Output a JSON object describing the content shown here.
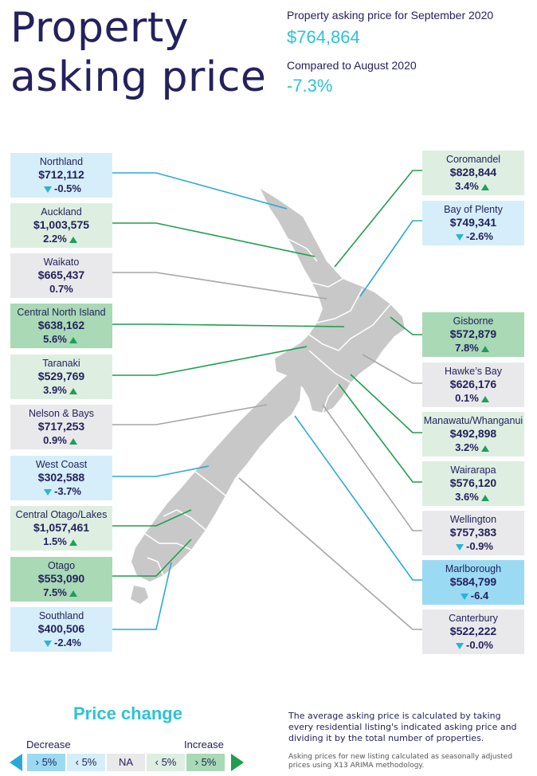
{
  "title_line1": "Property",
  "title_line2": "asking price",
  "header": {
    "current_label": "Property asking price for September 2020",
    "current_value": "$764,864",
    "compare_label": "Compared to August 2020",
    "compare_value": "-7.3%"
  },
  "regions": [
    {
      "name": "Northland",
      "price": "$712,112",
      "change": "-0.5%",
      "direction": "down",
      "category": "decrease-small",
      "side": "left"
    },
    {
      "name": "Auckland",
      "price": "$1,003,575",
      "change": "2.2%",
      "direction": "up",
      "category": "increase-small",
      "side": "left"
    },
    {
      "name": "Waikato",
      "price": "$665,437",
      "change": "0.7%",
      "direction": "none",
      "category": "na",
      "side": "left"
    },
    {
      "name": "Central North Island",
      "price": "$638,162",
      "change": "5.6%",
      "direction": "up",
      "category": "increase-large",
      "side": "left"
    },
    {
      "name": "Taranaki",
      "price": "$529,769",
      "change": "3.9%",
      "direction": "up",
      "category": "increase-small",
      "side": "left"
    },
    {
      "name": "Nelson & Bays",
      "price": "$717,253",
      "change": "0.9%",
      "direction": "up",
      "category": "na",
      "side": "left"
    },
    {
      "name": "West Coast",
      "price": "$302,588",
      "change": "-3.7%",
      "direction": "down",
      "category": "decrease-small",
      "side": "left"
    },
    {
      "name": "Central Otago/Lakes",
      "price": "$1,057,461",
      "change": "1.5%",
      "direction": "up",
      "category": "increase-small",
      "side": "left"
    },
    {
      "name": "Otago",
      "price": "$553,090",
      "change": "7.5%",
      "direction": "up",
      "category": "increase-large",
      "side": "left"
    },
    {
      "name": "Southland",
      "price": "$400,506",
      "change": "-2.4%",
      "direction": "down",
      "category": "decrease-small",
      "side": "left"
    },
    {
      "name": "Coromandel",
      "price": "$828,844",
      "change": "3.4%",
      "direction": "up",
      "category": "increase-small",
      "side": "right"
    },
    {
      "name": "Bay of Plenty",
      "price": "$749,341",
      "change": "-2.6%",
      "direction": "down",
      "category": "decrease-small",
      "side": "right"
    },
    {
      "name": "Gisborne",
      "price": "$572,879",
      "change": "7.8%",
      "direction": "up",
      "category": "increase-large",
      "side": "right"
    },
    {
      "name": "Hawke’s Bay",
      "price": "$626,176",
      "change": "0.1%",
      "direction": "up",
      "category": "na",
      "side": "right"
    },
    {
      "name": "Manawatu/Whanganui",
      "price": "$492,898",
      "change": "3.2%",
      "direction": "up",
      "category": "increase-small",
      "side": "right"
    },
    {
      "name": "Wairarapa",
      "price": "$576,120",
      "change": "3.6%",
      "direction": "up",
      "category": "increase-small",
      "side": "right"
    },
    {
      "name": "Wellington",
      "price": "$757,383",
      "change": "-0.9%",
      "direction": "down",
      "category": "na",
      "side": "right"
    },
    {
      "name": "Marlborough",
      "price": "$584,799",
      "change": "-6.4",
      "direction": "down",
      "category": "decrease-large",
      "side": "right"
    },
    {
      "name": "Canterbury",
      "price": "$522,222",
      "change": "-0.0%",
      "direction": "down",
      "category": "na",
      "side": "right"
    }
  ],
  "colors": {
    "increase-large": "#a9d9b5",
    "increase-small": "#deefe2",
    "na": "#e9e9eb",
    "decrease-small": "#d5eef9",
    "decrease-large": "#9bdaf3",
    "line-increase": "#1e9e4e",
    "line-decrease": "#2aa9d8",
    "line-na": "#a6a6a6",
    "map": "#c8c8c8",
    "title": "#24215e",
    "accent": "#2cc3d6"
  },
  "legend": {
    "title": "Price change",
    "decrease_label": "Decrease",
    "increase_label": "Increase",
    "cells": [
      "› 5%",
      "‹ 5%",
      "NA",
      "‹ 5%",
      "› 5%"
    ]
  },
  "footnote": {
    "main": "The average asking price is calculated by taking every residential listing's indicated asking price and dividing it by the total number of properties.",
    "small": "Asking prices for new listing calculated as seasonally adjusted prices using X13 ARIMA methodology."
  }
}
